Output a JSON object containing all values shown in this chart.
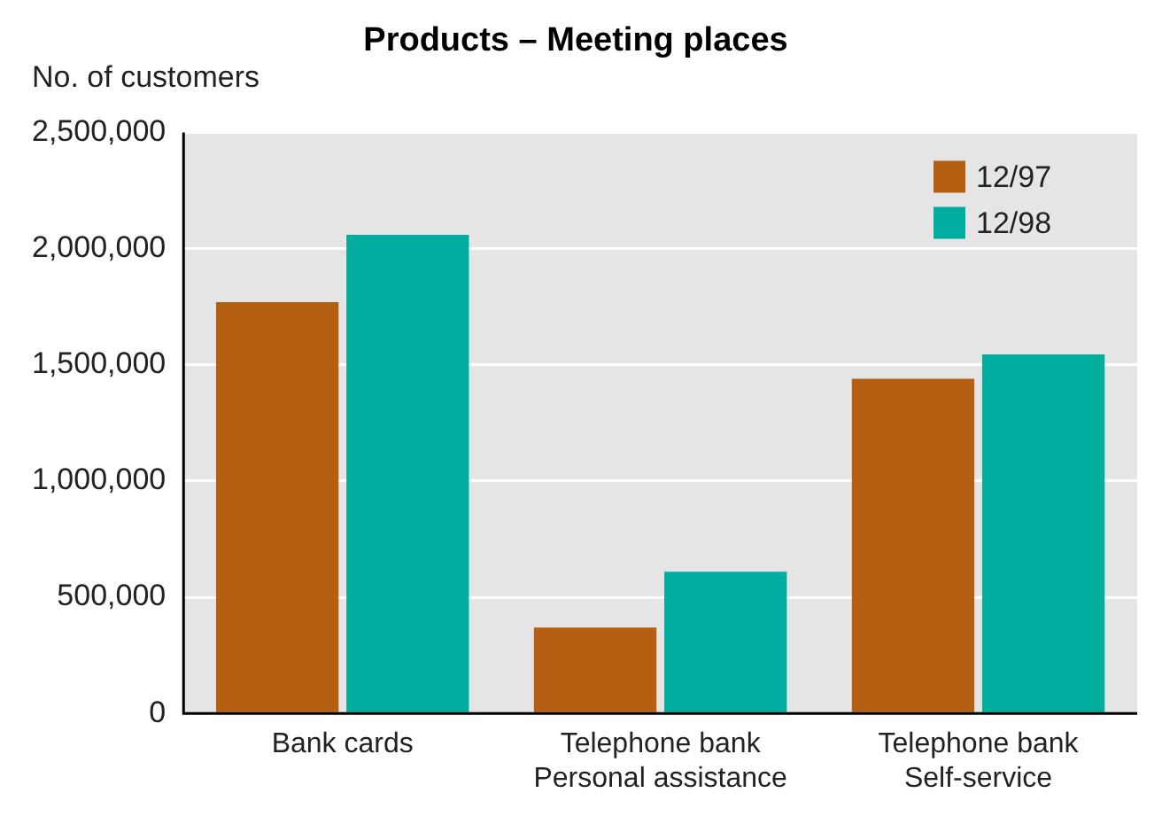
{
  "chart_data": {
    "type": "bar",
    "title": "Products – Meeting places",
    "ylabel": "No. of customers",
    "categories": [
      "Bank cards",
      "Telephone bank\nPersonal assistance",
      "Telephone bank\nSelf-service"
    ],
    "series": [
      {
        "name": "12/97",
        "color": "#b45f12",
        "values": [
          1770000,
          370000,
          1440000
        ]
      },
      {
        "name": "12/98",
        "color": "#00ad9e",
        "values": [
          2060000,
          610000,
          1545000
        ]
      }
    ],
    "ylim": [
      0,
      2500000
    ],
    "yticks": [
      0,
      {
        "value": 500000,
        "label": "500,000"
      },
      {
        "value": 1000000,
        "label": "1,000,000"
      },
      {
        "value": 1500000,
        "label": "1,500,000"
      },
      {
        "value": 2000000,
        "label": "2,000,000"
      },
      {
        "value": 2500000,
        "label": "2,500,000"
      }
    ],
    "grid": "y",
    "legend": "top right"
  }
}
